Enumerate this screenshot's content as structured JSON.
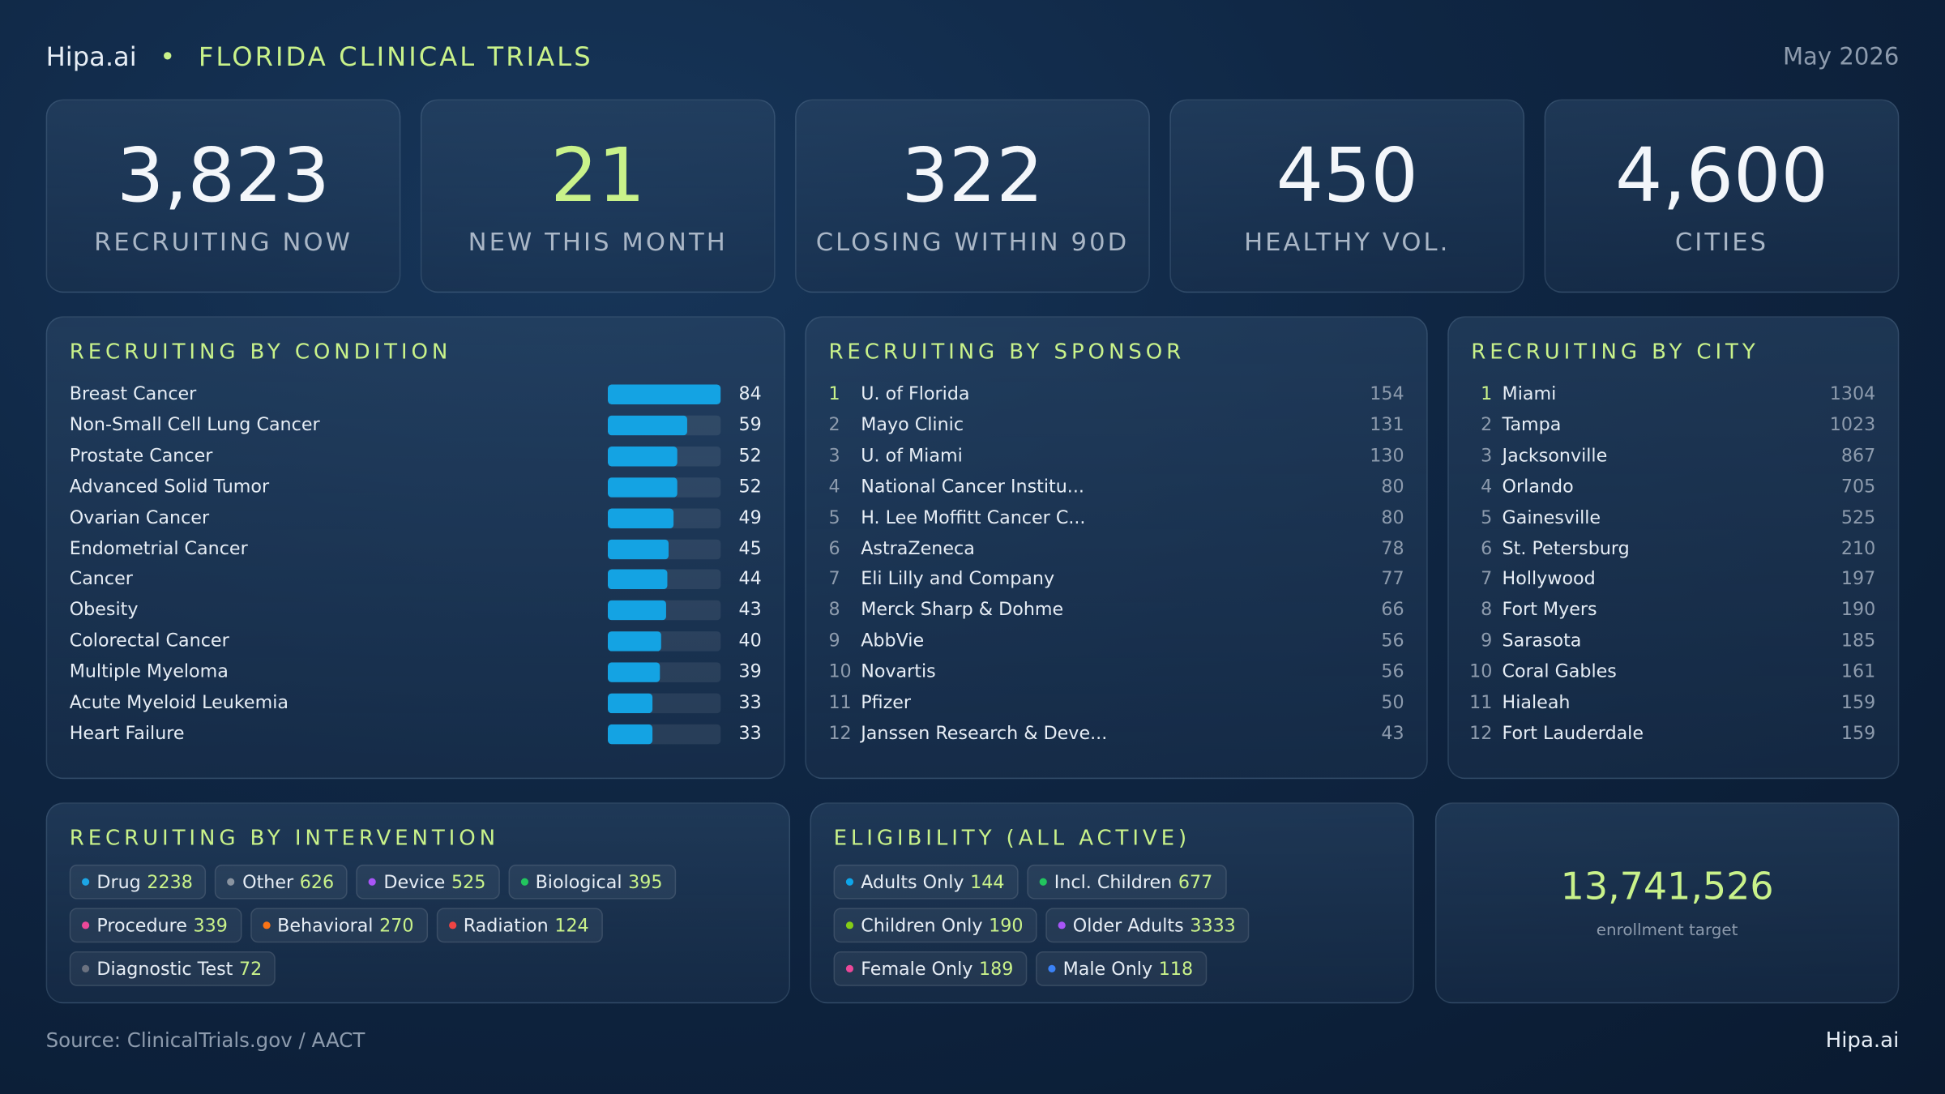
{
  "header": {
    "brand": "Hipa.ai",
    "title": "FLORIDA CLINICAL TRIALS",
    "date": "May 2026"
  },
  "kpis": [
    {
      "value": "3,823",
      "label": "RECRUITING NOW"
    },
    {
      "value": "21",
      "label": "NEW THIS MONTH",
      "accent": true
    },
    {
      "value": "322",
      "label": "CLOSING WITHIN 90D"
    },
    {
      "value": "450",
      "label": "HEALTHY VOL."
    },
    {
      "value": "4,600",
      "label": "CITIES"
    }
  ],
  "condition": {
    "title": "RECRUITING BY CONDITION",
    "color": "#14a3e3",
    "items": [
      {
        "name": "Breast Cancer",
        "value": 84
      },
      {
        "name": "Non-Small Cell Lung Cancer",
        "value": 59
      },
      {
        "name": "Prostate Cancer",
        "value": 52
      },
      {
        "name": "Advanced Solid Tumor",
        "value": 52
      },
      {
        "name": "Ovarian Cancer",
        "value": 49
      },
      {
        "name": "Endometrial Cancer",
        "value": 45
      },
      {
        "name": "Cancer",
        "value": 44
      },
      {
        "name": "Obesity",
        "value": 43
      },
      {
        "name": "Colorectal Cancer",
        "value": 40
      },
      {
        "name": "Multiple Myeloma",
        "value": 39
      },
      {
        "name": "Acute Myeloid Leukemia",
        "value": 33
      },
      {
        "name": "Heart Failure",
        "value": 33
      }
    ]
  },
  "sponsor": {
    "title": "RECRUITING BY SPONSOR",
    "items": [
      {
        "rank": 1,
        "name": "U. of Florida",
        "value": 154
      },
      {
        "rank": 2,
        "name": "Mayo Clinic",
        "value": 131
      },
      {
        "rank": 3,
        "name": "U. of Miami",
        "value": 130
      },
      {
        "rank": 4,
        "name": "National Cancer Institu...",
        "value": 80
      },
      {
        "rank": 5,
        "name": "H. Lee Moffitt Cancer C...",
        "value": 80
      },
      {
        "rank": 6,
        "name": "AstraZeneca",
        "value": 78
      },
      {
        "rank": 7,
        "name": "Eli Lilly and Company",
        "value": 77
      },
      {
        "rank": 8,
        "name": "Merck Sharp & Dohme",
        "value": 66
      },
      {
        "rank": 9,
        "name": "AbbVie",
        "value": 56
      },
      {
        "rank": 10,
        "name": "Novartis",
        "value": 56
      },
      {
        "rank": 11,
        "name": "Pfizer",
        "value": 50
      },
      {
        "rank": 12,
        "name": "Janssen Research & Deve...",
        "value": 43
      }
    ]
  },
  "city": {
    "title": "RECRUITING BY CITY",
    "items": [
      {
        "rank": 1,
        "name": "Miami",
        "value": 1304
      },
      {
        "rank": 2,
        "name": "Tampa",
        "value": 1023
      },
      {
        "rank": 3,
        "name": "Jacksonville",
        "value": 867
      },
      {
        "rank": 4,
        "name": "Orlando",
        "value": 705
      },
      {
        "rank": 5,
        "name": "Gainesville",
        "value": 525
      },
      {
        "rank": 6,
        "name": "St. Petersburg",
        "value": 210
      },
      {
        "rank": 7,
        "name": "Hollywood",
        "value": 197
      },
      {
        "rank": 8,
        "name": "Fort Myers",
        "value": 190
      },
      {
        "rank": 9,
        "name": "Sarasota",
        "value": 185
      },
      {
        "rank": 10,
        "name": "Coral Gables",
        "value": 161
      },
      {
        "rank": 11,
        "name": "Hialeah",
        "value": 159
      },
      {
        "rank": 12,
        "name": "Fort Lauderdale",
        "value": 159
      }
    ]
  },
  "intervention": {
    "title": "RECRUITING BY INTERVENTION",
    "chips": [
      {
        "name": "Drug",
        "value": 2238,
        "color": "#1ca6e6"
      },
      {
        "name": "Other",
        "value": 626,
        "color": "#8a94a0"
      },
      {
        "name": "Device",
        "value": 525,
        "color": "#a855f7"
      },
      {
        "name": "Biological",
        "value": 395,
        "color": "#22c55e"
      },
      {
        "name": "Procedure",
        "value": 339,
        "color": "#ec4899"
      },
      {
        "name": "Behavioral",
        "value": 270,
        "color": "#f97316"
      },
      {
        "name": "Radiation",
        "value": 124,
        "color": "#ef4444"
      },
      {
        "name": "Diagnostic Test",
        "value": 72,
        "color": "#6b7280"
      }
    ]
  },
  "eligibility": {
    "title": "ELIGIBILITY (ALL ACTIVE)",
    "chips": [
      {
        "name": "Adults Only",
        "value": 144,
        "color": "#0ea5e9"
      },
      {
        "name": "Incl. Children",
        "value": 677,
        "color": "#22c55e"
      },
      {
        "name": "Children Only",
        "value": 190,
        "color": "#84cc16"
      },
      {
        "name": "Older Adults",
        "value": 3333,
        "color": "#a855f7"
      },
      {
        "name": "Female Only",
        "value": 189,
        "color": "#ec4899"
      },
      {
        "name": "Male Only",
        "value": 118,
        "color": "#3b82f6"
      }
    ]
  },
  "enrollment": {
    "value": "13,741,526",
    "label": "enrollment target"
  },
  "footer": {
    "source": "Source: ClinicalTrials.gov / AACT",
    "brand": "Hipa.ai"
  }
}
